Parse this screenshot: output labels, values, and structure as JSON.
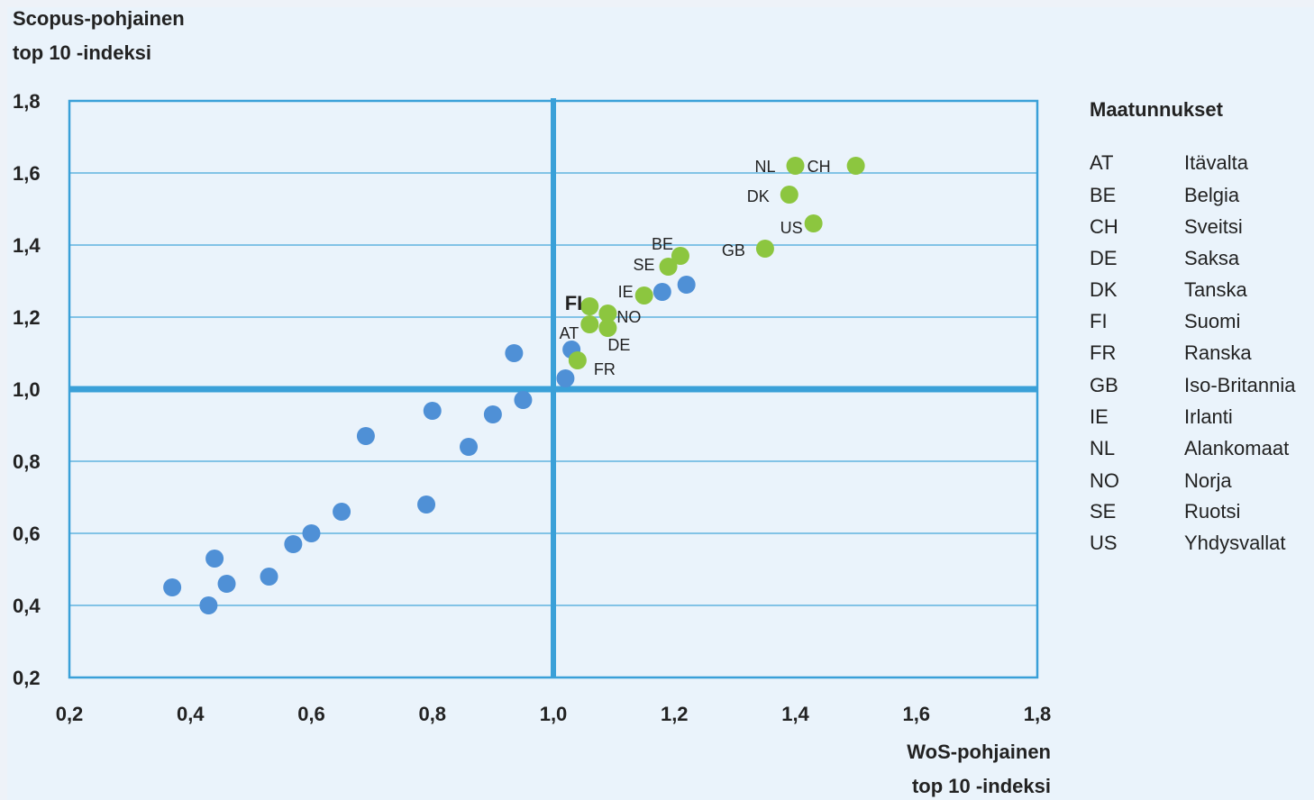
{
  "chart_data": {
    "type": "scatter",
    "ylabel_lines": [
      "Scopus-pohjainen",
      "top 10 -indeksi"
    ],
    "xlabel_lines": [
      "WoS-pohjainen",
      "top 10 -indeksi"
    ],
    "xlim": [
      0.2,
      1.8
    ],
    "ylim": [
      0.2,
      1.8
    ],
    "x_ticks": [
      "0,2",
      "0,4",
      "0,6",
      "0,8",
      "1,0",
      "1,2",
      "1,4",
      "1,6",
      "1,8"
    ],
    "y_ticks": [
      "0,2",
      "0,4",
      "0,6",
      "0,8",
      "1,0",
      "1,2",
      "1,4",
      "1,6",
      "1,8"
    ],
    "grid": "horizontal",
    "reference_lines": {
      "x": 1.0,
      "y": 1.0
    },
    "colors": {
      "blue": "#4f90d6",
      "green": "#8cc63f",
      "axis": "#3aa0d8",
      "grid": "#5fb3e0"
    },
    "series": [
      {
        "color_key": "blue",
        "points": [
          {
            "x": 0.37,
            "y": 0.45
          },
          {
            "x": 0.43,
            "y": 0.4
          },
          {
            "x": 0.44,
            "y": 0.53
          },
          {
            "x": 0.46,
            "y": 0.46
          },
          {
            "x": 0.53,
            "y": 0.48
          },
          {
            "x": 0.57,
            "y": 0.57
          },
          {
            "x": 0.6,
            "y": 0.6
          },
          {
            "x": 0.65,
            "y": 0.66
          },
          {
            "x": 0.69,
            "y": 0.87
          },
          {
            "x": 0.79,
            "y": 0.68
          },
          {
            "x": 0.8,
            "y": 0.94
          },
          {
            "x": 0.86,
            "y": 0.84
          },
          {
            "x": 0.9,
            "y": 0.93
          },
          {
            "x": 0.935,
            "y": 1.1
          },
          {
            "x": 0.95,
            "y": 0.97
          },
          {
            "x": 1.02,
            "y": 1.03
          },
          {
            "x": 1.03,
            "y": 1.11
          },
          {
            "x": 1.18,
            "y": 1.27
          },
          {
            "x": 1.22,
            "y": 1.29
          }
        ]
      },
      {
        "color_key": "green",
        "points": [
          {
            "x": 1.04,
            "y": 1.08,
            "label": "FR"
          },
          {
            "x": 1.06,
            "y": 1.18,
            "label": "AT"
          },
          {
            "x": 1.06,
            "y": 1.23,
            "label": "FI",
            "bold": true
          },
          {
            "x": 1.09,
            "y": 1.17,
            "label": "DE"
          },
          {
            "x": 1.09,
            "y": 1.21,
            "label": "NO"
          },
          {
            "x": 1.15,
            "y": 1.26,
            "label": "IE"
          },
          {
            "x": 1.19,
            "y": 1.34,
            "label": "SE"
          },
          {
            "x": 1.21,
            "y": 1.37,
            "label": "BE"
          },
          {
            "x": 1.35,
            "y": 1.39,
            "label": "GB"
          },
          {
            "x": 1.39,
            "y": 1.54,
            "label": "DK"
          },
          {
            "x": 1.4,
            "y": 1.62,
            "label": "NL"
          },
          {
            "x": 1.43,
            "y": 1.46,
            "label": "US"
          },
          {
            "x": 1.5,
            "y": 1.62,
            "label": "CH"
          }
        ]
      }
    ]
  },
  "legend": {
    "title": "Maatunnukset",
    "entries": [
      {
        "code": "AT",
        "name": "Itävalta"
      },
      {
        "code": "BE",
        "name": "Belgia"
      },
      {
        "code": "CH",
        "name": "Sveitsi"
      },
      {
        "code": "DE",
        "name": "Saksa"
      },
      {
        "code": "DK",
        "name": "Tanska"
      },
      {
        "code": "FI",
        "name": "Suomi"
      },
      {
        "code": "FR",
        "name": "Ranska"
      },
      {
        "code": "GB",
        "name": "Iso-Britannia"
      },
      {
        "code": "IE",
        "name": "Irlanti"
      },
      {
        "code": "NL",
        "name": "Alankomaat"
      },
      {
        "code": "NO",
        "name": "Norja"
      },
      {
        "code": "SE",
        "name": "Ruotsi"
      },
      {
        "code": "US",
        "name": "Yhdysvallat"
      }
    ]
  }
}
